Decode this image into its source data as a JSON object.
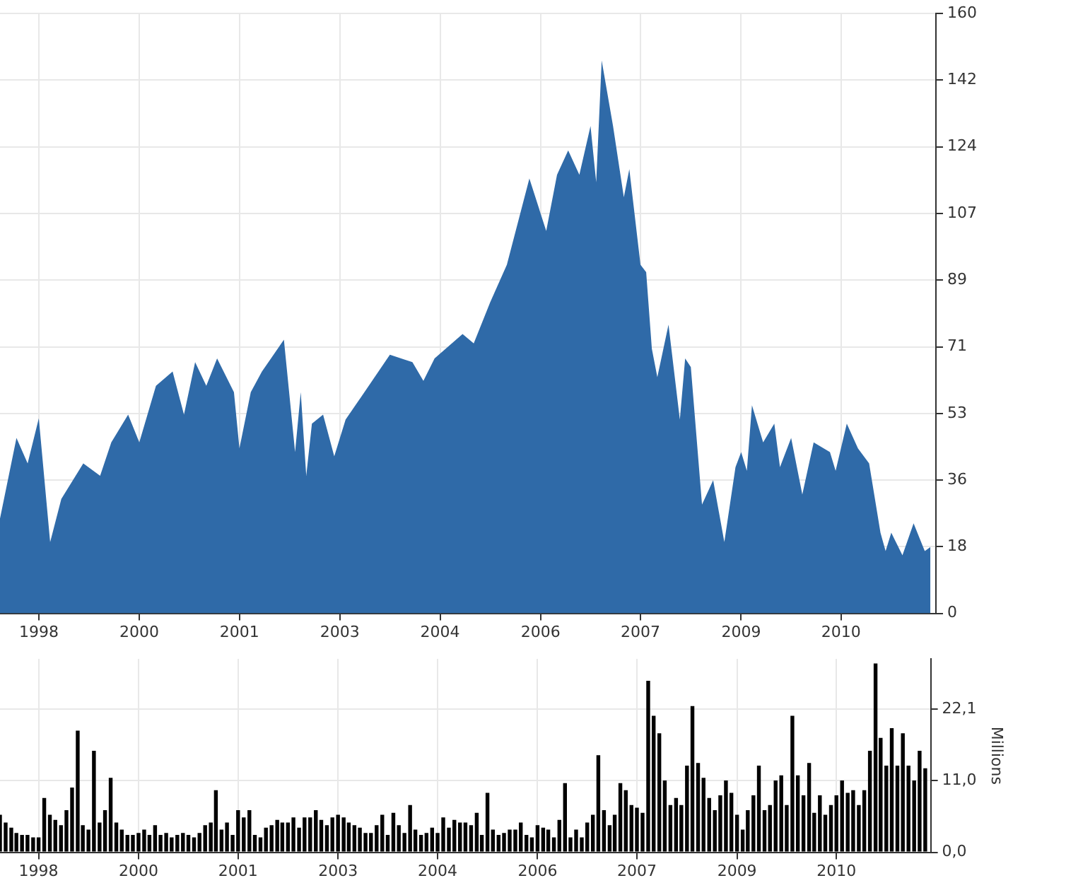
{
  "chart_data": [
    {
      "type": "area",
      "color": "#2f6aa8",
      "grid": true,
      "x": [
        "1997-12",
        "1998-03",
        "1998-05",
        "1998-07",
        "1998-09",
        "1998-11",
        "1999-03",
        "1999-06",
        "1999-08",
        "1999-11",
        "2000-01",
        "2000-04",
        "2000-07",
        "2000-09",
        "2000-11",
        "2001-01",
        "2001-03",
        "2001-06",
        "2001-07",
        "2001-09",
        "2001-11",
        "2002-03",
        "2002-05",
        "2002-06",
        "2002-07",
        "2002-08",
        "2002-10",
        "2002-12",
        "2003-02",
        "2003-05",
        "2003-10",
        "2004-02",
        "2004-04",
        "2004-06",
        "2004-11",
        "2005-01",
        "2005-04",
        "2005-07",
        "2005-11",
        "2006-02",
        "2006-04",
        "2006-06",
        "2006-08",
        "2006-10",
        "2006-11",
        "2006-12",
        "2007-02",
        "2007-04",
        "2007-05",
        "2007-07",
        "2007-08",
        "2007-09",
        "2007-10",
        "2007-12",
        "2008-02",
        "2008-03",
        "2008-04",
        "2008-06",
        "2008-08",
        "2008-10",
        "2008-12",
        "2009-01",
        "2009-02",
        "2009-03",
        "2009-05",
        "2009-07",
        "2009-08",
        "2009-10",
        "2009-12",
        "2010-02",
        "2010-05",
        "2010-06",
        "2010-08",
        "2010-10",
        "2010-12",
        "2011-02",
        "2011-03",
        "2011-04",
        "2011-06",
        "2011-08",
        "2011-10",
        "2011-11"
      ],
      "values": [
        25.3,
        46.8,
        40,
        52,
        19,
        30.5,
        40,
        36.7,
        45.6,
        53,
        45.6,
        60.7,
        64.5,
        53,
        67,
        60.7,
        68,
        59,
        44,
        59,
        64.5,
        73,
        43,
        59,
        36.7,
        50.6,
        53,
        41.9,
        51.7,
        58,
        69,
        67,
        62,
        68,
        74.5,
        72,
        83,
        93,
        116,
        102,
        117,
        123.5,
        117,
        130,
        115,
        147.5,
        130,
        111,
        118.5,
        93,
        91,
        70.6,
        63,
        77,
        51.7,
        68,
        65.7,
        29,
        35.5,
        19,
        39,
        43,
        38,
        55.5,
        45.6,
        50.6,
        39,
        46.8,
        31.7,
        45.6,
        43,
        38,
        50.6,
        44,
        40,
        21.5,
        16.6,
        21.5,
        15.5,
        24,
        16.6,
        17.7
      ],
      "xlim": [
        "1997-12",
        "2011-12"
      ],
      "xticks": [
        {
          "value": "1998-07",
          "label": "1998"
        },
        {
          "value": "2000-01",
          "label": "2000"
        },
        {
          "value": "2001-07",
          "label": "2001"
        },
        {
          "value": "2003-01",
          "label": "2003"
        },
        {
          "value": "2004-07",
          "label": "2004"
        },
        {
          "value": "2006-01",
          "label": "2006"
        },
        {
          "value": "2007-07",
          "label": "2007"
        },
        {
          "value": "2009-01",
          "label": "2009"
        },
        {
          "value": "2010-07",
          "label": "2010"
        }
      ],
      "ylim": [
        0,
        160
      ],
      "yticks": [
        0,
        {
          "value": 17.78,
          "label": "18"
        },
        {
          "value": 35.56,
          "label": "36"
        },
        {
          "value": 53.33,
          "label": "53"
        },
        {
          "value": 71.11,
          "label": "71"
        },
        {
          "value": 88.89,
          "label": "89"
        },
        {
          "value": 106.67,
          "label": "107"
        },
        {
          "value": 124.44,
          "label": "124"
        },
        {
          "value": 142.22,
          "label": "142"
        },
        160
      ]
    },
    {
      "type": "bar",
      "color": "#000000",
      "grid": true,
      "ylabel": "Millions",
      "x": [
        "1997-12",
        "1998-01",
        "1998-02",
        "1998-03",
        "1998-04",
        "1998-05",
        "1998-06",
        "1998-07",
        "1998-08",
        "1998-09",
        "1998-10",
        "1998-11",
        "1998-12",
        "1999-01",
        "1999-02",
        "1999-03",
        "1999-04",
        "1999-05",
        "1999-06",
        "1999-07",
        "1999-08",
        "1999-09",
        "1999-10",
        "1999-11",
        "1999-12",
        "2000-01",
        "2000-02",
        "2000-03",
        "2000-04",
        "2000-05",
        "2000-06",
        "2000-07",
        "2000-08",
        "2000-09",
        "2000-10",
        "2000-11",
        "2000-12",
        "2001-01",
        "2001-02",
        "2001-03",
        "2001-04",
        "2001-05",
        "2001-06",
        "2001-07",
        "2001-08",
        "2001-09",
        "2001-10",
        "2001-11",
        "2001-12",
        "2002-01",
        "2002-02",
        "2002-03",
        "2002-04",
        "2002-05",
        "2002-06",
        "2002-07",
        "2002-08",
        "2002-09",
        "2002-10",
        "2002-11",
        "2002-12",
        "2003-01",
        "2003-02",
        "2003-03",
        "2003-04",
        "2003-05",
        "2003-06",
        "2003-07",
        "2003-08",
        "2003-09",
        "2003-10",
        "2003-11",
        "2003-12",
        "2004-01",
        "2004-02",
        "2004-03",
        "2004-04",
        "2004-05",
        "2004-06",
        "2004-07",
        "2004-08",
        "2004-09",
        "2004-10",
        "2004-11",
        "2004-12",
        "2005-01",
        "2005-02",
        "2005-03",
        "2005-04",
        "2005-05",
        "2005-06",
        "2005-07",
        "2005-08",
        "2005-09",
        "2005-10",
        "2005-11",
        "2005-12",
        "2006-01",
        "2006-02",
        "2006-03",
        "2006-04",
        "2006-05",
        "2006-06",
        "2006-07",
        "2006-08",
        "2006-09",
        "2006-10",
        "2006-11",
        "2006-12",
        "2007-01",
        "2007-02",
        "2007-03",
        "2007-04",
        "2007-05",
        "2007-06",
        "2007-07",
        "2007-08",
        "2007-09",
        "2007-10",
        "2007-11",
        "2007-12",
        "2008-01",
        "2008-02",
        "2008-03",
        "2008-04",
        "2008-05",
        "2008-06",
        "2008-07",
        "2008-08",
        "2008-09",
        "2008-10",
        "2008-11",
        "2008-12",
        "2009-01",
        "2009-02",
        "2009-03",
        "2009-04",
        "2009-05",
        "2009-06",
        "2009-07",
        "2009-08",
        "2009-09",
        "2009-10",
        "2009-11",
        "2009-12",
        "2010-01",
        "2010-02",
        "2010-03",
        "2010-04",
        "2010-05",
        "2010-06",
        "2010-07",
        "2010-08",
        "2010-09",
        "2010-10",
        "2010-11",
        "2010-12",
        "2011-01",
        "2011-02",
        "2011-03",
        "2011-04",
        "2011-05",
        "2011-06",
        "2011-07",
        "2011-08",
        "2011-09",
        "2011-10",
        "2011-11"
      ],
      "values": [
        5.8,
        4.6,
        3.8,
        3,
        2.7,
        2.7,
        2.3,
        2.3,
        8.4,
        5.8,
        5,
        4.2,
        6.5,
        10,
        18.8,
        4.2,
        3.5,
        15.7,
        4.6,
        6.5,
        11.5,
        4.6,
        3.5,
        2.7,
        2.7,
        3,
        3.5,
        2.7,
        4.2,
        2.7,
        3,
        2.3,
        2.7,
        3,
        2.7,
        2.3,
        3,
        4.2,
        4.6,
        9.6,
        3.5,
        4.6,
        2.7,
        6.5,
        5.4,
        6.5,
        2.7,
        2.3,
        3.8,
        4.2,
        5,
        4.6,
        4.6,
        5.4,
        3.8,
        5.4,
        5.4,
        6.5,
        5,
        4.2,
        5.4,
        5.8,
        5.4,
        4.6,
        4.2,
        3.8,
        3,
        3,
        4.2,
        5.8,
        2.7,
        6.1,
        4.2,
        3,
        7.3,
        3.5,
        2.7,
        3,
        3.8,
        3,
        5.4,
        3.8,
        5,
        4.6,
        4.6,
        4.2,
        6.1,
        2.7,
        9.2,
        3.5,
        2.7,
        3,
        3.5,
        3.5,
        4.6,
        2.7,
        2.3,
        4.2,
        3.8,
        3.5,
        2.3,
        5,
        10.7,
        2.3,
        3.5,
        2.3,
        4.6,
        5.8,
        15,
        6.5,
        4.2,
        5.8,
        10.7,
        9.6,
        7.3,
        6.9,
        6.1,
        26.5,
        21.1,
        18.4,
        11.1,
        7.3,
        8.4,
        7.3,
        13.4,
        22.6,
        13.8,
        11.5,
        8.4,
        6.5,
        8.8,
        11.1,
        9.2,
        5.8,
        3.5,
        6.5,
        8.8,
        13.4,
        6.5,
        7.3,
        11.1,
        11.9,
        7.3,
        21.1,
        11.9,
        8.8,
        13.8,
        6.1,
        8.8,
        5.8,
        7.3,
        8.8,
        11.1,
        9.2,
        9.6,
        7.3,
        9.6,
        15.7,
        29.2,
        17.7,
        13.4,
        19.2,
        13.4,
        18.4,
        13.4,
        11.1,
        15.7,
        13
      ],
      "xlim": [
        "1997-12",
        "2011-12"
      ],
      "xticks": [
        {
          "value": "1998-07",
          "label": "1998"
        },
        {
          "value": "2000-01",
          "label": "2000"
        },
        {
          "value": "2001-07",
          "label": "2001"
        },
        {
          "value": "2003-01",
          "label": "2003"
        },
        {
          "value": "2004-07",
          "label": "2004"
        },
        {
          "value": "2006-01",
          "label": "2006"
        },
        {
          "value": "2007-07",
          "label": "2007"
        },
        {
          "value": "2009-01",
          "label": "2009"
        },
        {
          "value": "2010-07",
          "label": "2010"
        }
      ],
      "ylim": [
        0,
        29.9
      ],
      "yticks": [
        {
          "value": 0,
          "label": "0,0"
        },
        {
          "value": 11.05,
          "label": "11,0"
        },
        {
          "value": 22.1,
          "label": "22,1"
        }
      ]
    }
  ]
}
